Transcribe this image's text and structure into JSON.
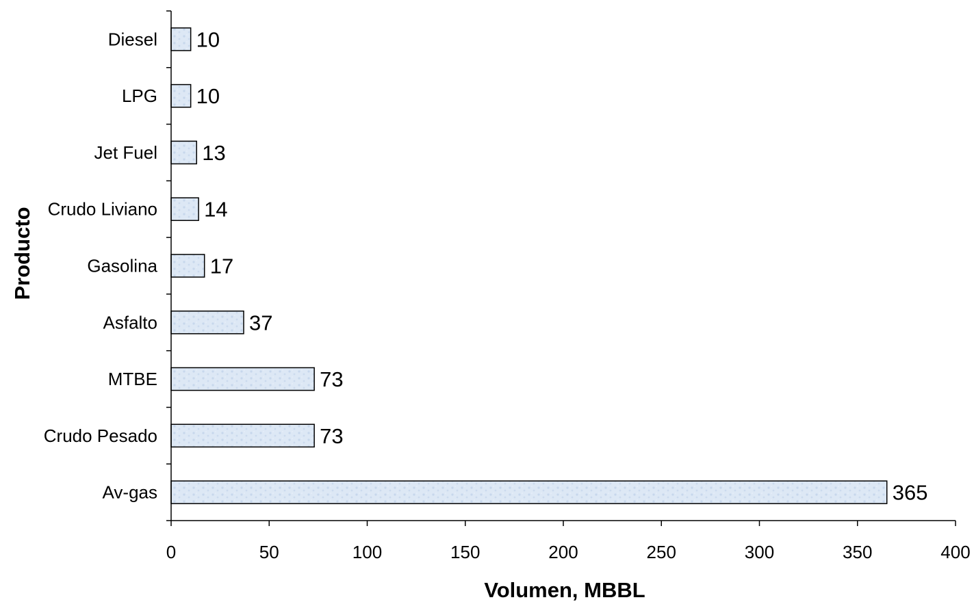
{
  "chart_data": {
    "type": "bar",
    "orientation": "horizontal",
    "categories": [
      "Diesel",
      "LPG",
      "Jet Fuel",
      "Crudo Liviano",
      "Gasolina",
      "Asfalto",
      "MTBE",
      "Crudo Pesado",
      "Av-gas"
    ],
    "values": [
      10,
      10,
      13,
      14,
      17,
      37,
      73,
      73,
      365
    ],
    "title": "",
    "xlabel": "Volumen, MBBL",
    "ylabel": "Producto",
    "xlim": [
      0,
      400
    ],
    "xticks": [
      0,
      50,
      100,
      150,
      200,
      250,
      300,
      350,
      400
    ],
    "grid": false,
    "legend": "none",
    "data_labels": true,
    "colors": {
      "bar_fill": "#dde8f5",
      "bar_stroke": "#000000",
      "axis": "#000000"
    }
  }
}
